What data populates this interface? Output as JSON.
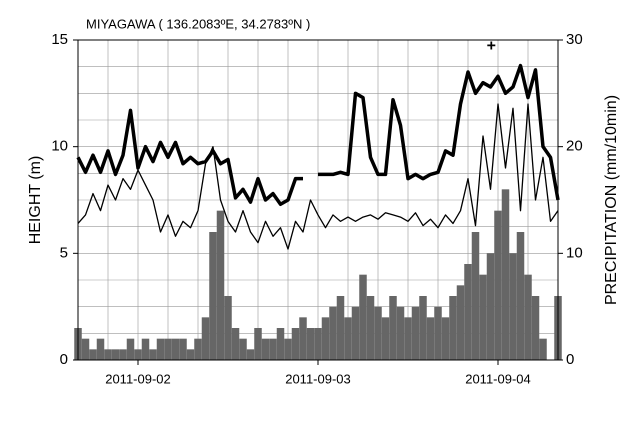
{
  "chart_data": {
    "type": "combo",
    "title": "MIYAGAWA ( 136.2083ºE, 34.2783ºN )",
    "y_label": "HEIGHT (m)",
    "y2_label": "PRECIPITATION (mm/10min)",
    "x": [
      0,
      1,
      2,
      3,
      4,
      5,
      6,
      7,
      8,
      9,
      10,
      11,
      12,
      13,
      14,
      15,
      16,
      17,
      18,
      19,
      20,
      21,
      22,
      23,
      24,
      25,
      26,
      27,
      28,
      29,
      30,
      31,
      32,
      33,
      34,
      35,
      36,
      37,
      38,
      39,
      40,
      41,
      42,
      43,
      44,
      45,
      46,
      47,
      48,
      49,
      50,
      51,
      52,
      53,
      54,
      55,
      56,
      57,
      58,
      59,
      60,
      61,
      62,
      63,
      64
    ],
    "xlim": [
      0,
      64
    ],
    "xticks": [
      {
        "value": 8,
        "label": "2011-09-02"
      },
      {
        "value": 32,
        "label": "2011-09-03"
      },
      {
        "value": 56,
        "label": "2011-09-04"
      }
    ],
    "xgrid": [
      0,
      4,
      8,
      12,
      16,
      20,
      24,
      28,
      32,
      36,
      40,
      44,
      48,
      52,
      56,
      60,
      64
    ],
    "ylim": [
      0,
      15
    ],
    "yticks": [
      0,
      5,
      10,
      15
    ],
    "ygrid": [
      0,
      1.25,
      2.5,
      3.75,
      5,
      6.25,
      7.5,
      8.75,
      10,
      11.25,
      12.5,
      13.75,
      15
    ],
    "y2lim": [
      0,
      30
    ],
    "y2ticks": [
      0,
      10,
      20,
      30
    ],
    "grid": true,
    "series": [
      {
        "type": "bar",
        "axis": "y2",
        "color": "#666666",
        "values": [
          3,
          2,
          1,
          2,
          1,
          1,
          1,
          2,
          1,
          2,
          1,
          2,
          2,
          2,
          2,
          1,
          2,
          4,
          12,
          14,
          6,
          3,
          2,
          1,
          3,
          2,
          2,
          3,
          2,
          3,
          4,
          3,
          3,
          4,
          5,
          6,
          4,
          5,
          8,
          6,
          5,
          4,
          6,
          5,
          4,
          5,
          6,
          4,
          5,
          4,
          6,
          7,
          9,
          12,
          8,
          10,
          14,
          16,
          10,
          12,
          8,
          6,
          2,
          0,
          6
        ]
      },
      {
        "type": "line",
        "color": "#000000",
        "line_width": 1.3,
        "values": [
          6.4,
          6.8,
          7.8,
          7.0,
          8.2,
          7.5,
          8.5,
          8.0,
          8.9,
          8.2,
          7.5,
          6.0,
          6.8,
          5.8,
          6.5,
          6.2,
          7.0,
          9.2,
          10.0,
          7.5,
          6.5,
          6.0,
          7.0,
          6.0,
          5.5,
          6.5,
          5.8,
          6.2,
          5.2,
          6.5,
          6.0,
          7.5,
          6.8,
          6.2,
          6.8,
          6.5,
          6.7,
          6.5,
          6.7,
          6.8,
          6.6,
          6.9,
          6.8,
          6.7,
          6.5,
          6.9,
          6.3,
          6.6,
          6.2,
          6.8,
          6.4,
          7.0,
          8.5,
          6.3,
          10.5,
          8.0,
          12.0,
          9.0,
          11.8,
          7.0,
          12.0,
          7.5,
          9.5,
          6.5,
          7.0
        ]
      },
      {
        "type": "line",
        "color": "#000000",
        "line_width": 3.5,
        "values": [
          9.5,
          8.8,
          9.6,
          8.8,
          9.8,
          8.7,
          9.6,
          11.7,
          9.0,
          10.0,
          9.3,
          10.2,
          9.5,
          10.2,
          9.2,
          9.5,
          9.2,
          9.3,
          9.8,
          9.2,
          9.4,
          7.6,
          8.0,
          7.4,
          8.5,
          7.5,
          7.8,
          7.3,
          7.5,
          8.5,
          8.5,
          null,
          8.7,
          8.7,
          8.7,
          8.8,
          8.7,
          12.5,
          12.3,
          9.5,
          8.7,
          8.7,
          12.2,
          11.0,
          8.5,
          8.7,
          8.5,
          8.7,
          8.8,
          9.8,
          9.6,
          12.0,
          13.5,
          12.5,
          13.0,
          12.8,
          13.3,
          12.5,
          12.8,
          13.8,
          12.3,
          13.6,
          10.0,
          9.5,
          7.5
        ]
      }
    ],
    "annotations": [
      {
        "x": 55.1,
        "y": 14.7,
        "symbol": "+"
      }
    ]
  }
}
